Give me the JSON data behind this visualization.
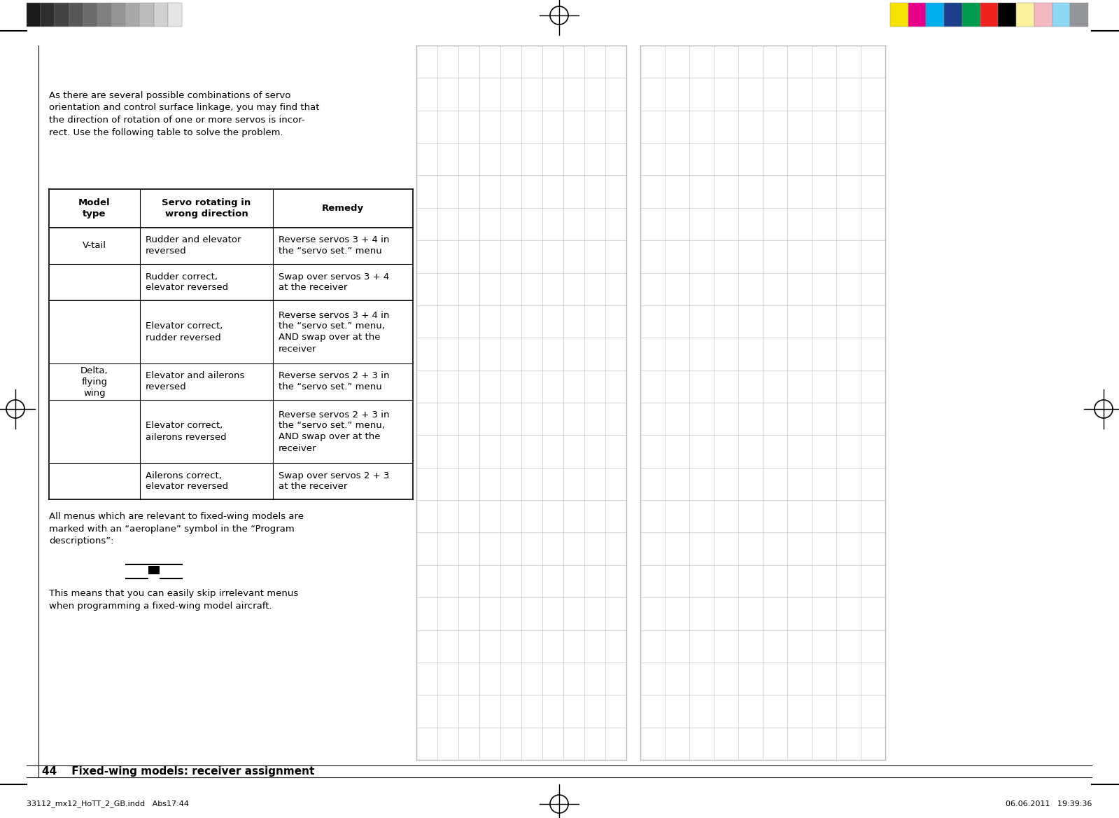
{
  "page_title": "44    Fixed-wing models: receiver assignment",
  "footer_left": "33112_mx12_HoTT_2_GB.indd   Abs17:44",
  "footer_right": "06.06.2011   19:39:36",
  "intro_text": "As there are several possible combinations of servo\norientation and control surface linkage, you may find that\nthe direction of rotation of one or more servos is incor-\nrect. Use the following table to solve the problem.",
  "table_headers": [
    "Model\ntype",
    "Servo rotating in\nwrong direction",
    "Remedy"
  ],
  "table_rows": [
    [
      "V-tail",
      "Rudder and elevator\nreversed",
      "Reverse servos 3 + 4 in\nthe “servo set.” menu"
    ],
    [
      "",
      "Rudder correct,\nelevator reversed",
      "Swap over servos 3 + 4\nat the receiver"
    ],
    [
      "",
      "Elevator correct,\nrudder reversed",
      "Reverse servos 3 + 4 in\nthe “servo set.” menu,\nAND swap over at the\nreceiver"
    ],
    [
      "Delta,\nflying\nwing",
      "Elevator and ailerons\nreversed",
      "Reverse servos 2 + 3 in\nthe “servo set.” menu"
    ],
    [
      "",
      "Elevator correct,\nailerons reversed",
      "Reverse servos 2 + 3 in\nthe “servo set.” menu,\nAND swap over at the\nreceiver"
    ],
    [
      "",
      "Ailerons correct,\nelevator reversed",
      "Swap over servos 2 + 3\nat the receiver"
    ]
  ],
  "after_table_text": "All menus which are relevant to fixed-wing models are\nmarked with an “aeroplane” symbol in the “Program\ndescriptions”:",
  "after_symbol_text": "This means that you can easily skip irrelevant menus\nwhen programming a fixed-wing model aircraft.",
  "bg_color": "#ffffff",
  "grayscale_colors": [
    "#1a1a1a",
    "#2e2e2e",
    "#424242",
    "#575757",
    "#6b6b6b",
    "#808080",
    "#949494",
    "#a8a8a8",
    "#bcbcbc",
    "#d1d1d1",
    "#e5e5e5"
  ],
  "color_bar_colors": [
    "#f5e200",
    "#e8008c",
    "#00aeef",
    "#1c3f8c",
    "#009a4e",
    "#ee2020",
    "#000000",
    "#f9f19d",
    "#f4b8c1",
    "#8cd8f5",
    "#939598"
  ],
  "crosshair_color": "#000000"
}
